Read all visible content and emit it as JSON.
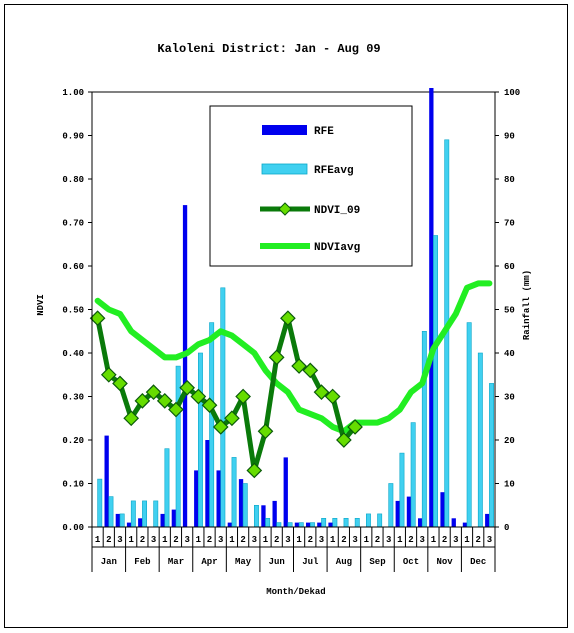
{
  "chart_data": {
    "type": "bar+line",
    "title": "Kaloleni District: Jan - Aug 09",
    "xlabel": "Month/Dekad",
    "ylabel_left": "NDVI",
    "ylabel_right": "Rainfall (mm)",
    "ylim_left": [
      0,
      1
    ],
    "ylim_right": [
      0,
      100
    ],
    "left_ticks": [
      "0.00",
      "0.10",
      "0.20",
      "0.30",
      "0.40",
      "0.50",
      "0.60",
      "0.70",
      "0.80",
      "0.90",
      "1.00"
    ],
    "right_ticks": [
      "0",
      "10",
      "20",
      "30",
      "40",
      "50",
      "60",
      "70",
      "80",
      "90",
      "100"
    ],
    "months": [
      "Jan",
      "Feb",
      "Mar",
      "Apr",
      "May",
      "Jun",
      "Jul",
      "Aug",
      "Sep",
      "Oct",
      "Nov",
      "Dec"
    ],
    "dekads": [
      "1",
      "2",
      "3"
    ],
    "legend": {
      "placement": "top-center"
    },
    "series": [
      {
        "name": "RFE",
        "kind": "bar",
        "axis": "right",
        "color": "#0000ee",
        "values": [
          0,
          21,
          3,
          1,
          2,
          0,
          3,
          4,
          74,
          13,
          20,
          13,
          1,
          11,
          0,
          5,
          6,
          16,
          1,
          1,
          1,
          1,
          0,
          0,
          0,
          0,
          0,
          6,
          7,
          2,
          101,
          8,
          2,
          1,
          0,
          3
        ]
      },
      {
        "name": "RFEavg",
        "kind": "bar",
        "axis": "right",
        "color": "#40d0f0",
        "values": [
          11,
          7,
          3,
          6,
          6,
          6,
          18,
          37,
          0,
          40,
          47,
          55,
          16,
          10,
          5,
          2,
          1,
          1,
          1,
          1,
          2,
          2,
          2,
          2,
          3,
          3,
          10,
          17,
          24,
          45,
          67,
          89,
          0,
          47,
          40,
          33
        ]
      },
      {
        "name": "NDVI_09",
        "kind": "line",
        "axis": "left",
        "color": "#0a7a0a",
        "marker_color": "#66dd00",
        "values": [
          0.48,
          0.35,
          0.33,
          0.25,
          0.29,
          0.31,
          0.29,
          0.27,
          0.32,
          0.3,
          0.28,
          0.23,
          0.25,
          0.3,
          0.13,
          0.22,
          0.39,
          0.48,
          0.37,
          0.36,
          0.31,
          0.3,
          0.2,
          0.23
        ]
      },
      {
        "name": "NDVIavg",
        "kind": "line",
        "axis": "left",
        "color": "#22ee22",
        "values": [
          0.52,
          0.5,
          0.49,
          0.45,
          0.43,
          0.41,
          0.39,
          0.39,
          0.4,
          0.42,
          0.43,
          0.45,
          0.44,
          0.42,
          0.4,
          0.36,
          0.33,
          0.31,
          0.27,
          0.26,
          0.25,
          0.23,
          0.22,
          0.24,
          0.24,
          0.24,
          0.25,
          0.27,
          0.31,
          0.33,
          0.41,
          0.45,
          0.49,
          0.55,
          0.56,
          0.56
        ]
      }
    ]
  }
}
